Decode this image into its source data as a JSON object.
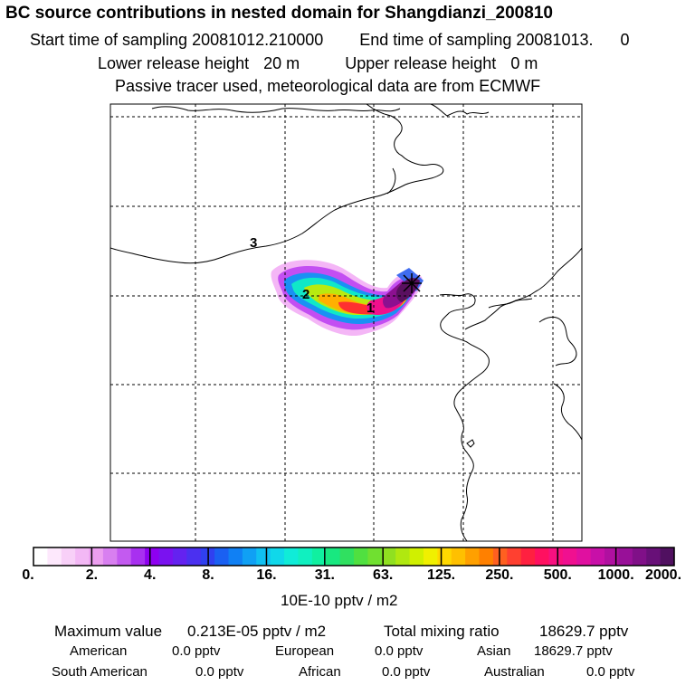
{
  "header": {
    "title": "BC  source contributions in nested domain for Shangdianzi_200810",
    "start_label": "Start time of sampling",
    "start_value": "20081012.210000",
    "end_label": "End time of sampling",
    "end_value": "20081013.",
    "end_value2": "0",
    "lower_label": "Lower release height",
    "lower_value": "20 m",
    "upper_label": "Upper release height",
    "upper_value": "0 m",
    "note": "Passive tracer used, meteorological data are from ECMWF"
  },
  "map": {
    "region_labels": [
      "1",
      "2",
      "3"
    ],
    "receptor": "Shangdianzi"
  },
  "colorbar": {
    "ticks": [
      "0.",
      "2.",
      "4.",
      "8.",
      "16.",
      "31.",
      "63.",
      "125.",
      "250.",
      "500.",
      "1000.",
      "2000."
    ],
    "units": "10E-10 pptv / m2",
    "colors": [
      "#ffffff",
      "#fde8fc",
      "#f8d0f8",
      "#f3b8f5",
      "#ec9ef0",
      "#d87ff0",
      "#c35af0",
      "#a830f0",
      "#8e00f0",
      "#7a12f0",
      "#6422f0",
      "#4b30f0",
      "#3040f0",
      "#1a60f2",
      "#1080f4",
      "#10a0f4",
      "#10c0f2",
      "#10d8ea",
      "#10ecd8",
      "#10f0c0",
      "#10f0a0",
      "#18e880",
      "#30e060",
      "#50e040",
      "#70e030",
      "#90e020",
      "#b0e810",
      "#d0f000",
      "#f0f000",
      "#ffd800",
      "#ffc000",
      "#ffa000",
      "#ff8000",
      "#ff6020",
      "#ff4030",
      "#ff2040",
      "#ff1060",
      "#f81080",
      "#f01090",
      "#e010a0",
      "#c810a8",
      "#b010a0",
      "#981098",
      "#801088",
      "#681078",
      "#501060"
    ]
  },
  "stats": {
    "max_label": "Maximum value",
    "max_value": "0.213E-05 pptv / m2",
    "total_label": "Total mixing ratio",
    "total_value": "18629.7 pptv",
    "regions": [
      {
        "name": "American",
        "value": "0.0 pptv"
      },
      {
        "name": "European",
        "value": "0.0 pptv"
      },
      {
        "name": "Asian",
        "value": "18629.7 pptv"
      },
      {
        "name": "South American",
        "value": "0.0 pptv"
      },
      {
        "name": "African",
        "value": "0.0 pptv"
      },
      {
        "name": "Australian",
        "value": "0.0 pptv"
      }
    ]
  }
}
